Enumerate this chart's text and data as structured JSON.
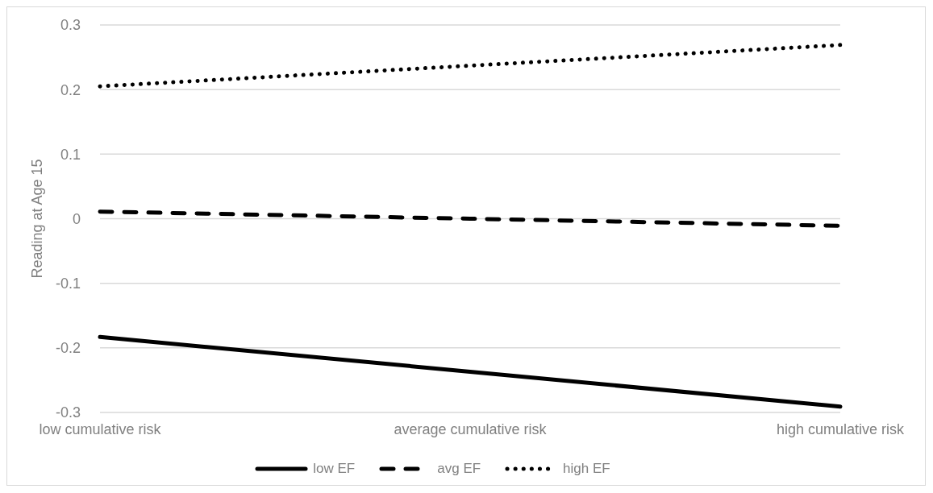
{
  "chart_data": {
    "type": "line",
    "ylabel": "Reading at Age 15",
    "categories": [
      "low cumulative risk",
      "average cumulative risk",
      "high cumulative risk"
    ],
    "series": [
      {
        "name": "low EF",
        "color": "#000000",
        "line_style": "solid",
        "values": [
          -0.183,
          -0.237,
          -0.291
        ]
      },
      {
        "name": "avg EF",
        "color": "#000000",
        "line_style": "dashed",
        "values": [
          0.011,
          0.0,
          -0.011
        ]
      },
      {
        "name": "high EF",
        "color": "#000000",
        "line_style": "dotted",
        "values": [
          0.205,
          0.237,
          0.269
        ]
      }
    ],
    "ylim": [
      -0.3,
      0.3
    ],
    "yticks": [
      -0.3,
      -0.2,
      -0.1,
      0,
      0.1,
      0.2,
      0.3
    ],
    "grid": "y",
    "legend": "bottom",
    "marker": "none"
  }
}
